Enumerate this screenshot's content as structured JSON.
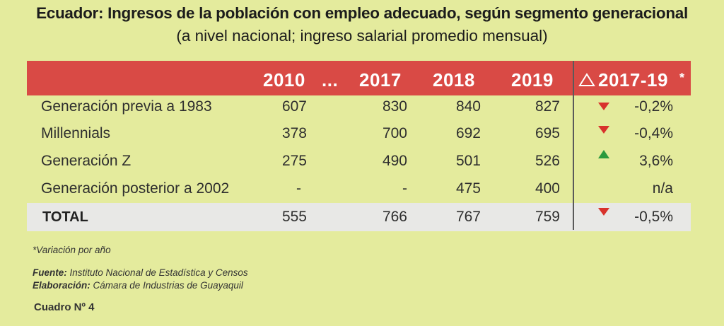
{
  "title": "Ecuador: Ingresos de la población con empleo adecuado, según segmento generacional",
  "subtitle": "(a nivel nacional; ingreso salarial promedio mensual)",
  "header": {
    "col_2010": "2010",
    "col_ellipsis": "...",
    "col_2017": "2017",
    "col_2018": "2018",
    "col_2019": "2019",
    "col_change": "2017-19",
    "change_marker": "*"
  },
  "rows": [
    {
      "label": "Generación previa a 1983",
      "v2010": "607",
      "v2017": "830",
      "v2018": "840",
      "v2019": "827",
      "change": "-0,2%",
      "trend": "down"
    },
    {
      "label": "Millennials",
      "v2010": "378",
      "v2017": "700",
      "v2018": "692",
      "v2019": "695",
      "change": "-0,4%",
      "trend": "down"
    },
    {
      "label": "Generación Z",
      "v2010": "275",
      "v2017": "490",
      "v2018": "501",
      "v2019": "526",
      "change": "3,6%",
      "trend": "up"
    },
    {
      "label": "Generación posterior a 2002",
      "v2010": "-",
      "v2017": "-",
      "v2018": "475",
      "v2019": "400",
      "change": "n/a",
      "trend": "none"
    }
  ],
  "total": {
    "label": "TOTAL",
    "v2010": "555",
    "v2017": "766",
    "v2018": "767",
    "v2019": "759",
    "change": "-0,5%",
    "trend": "down"
  },
  "footnote": "*Variación por año",
  "source_label": "Fuente:",
  "source_text": "Instituto Nacional de Estadística y Censos",
  "elab_label": "Elaboración:",
  "elab_text": "Cámara de Industrias de Guayaquil",
  "table_caption": "Cuadro Nº 4",
  "colors": {
    "background": "#e4eb9d",
    "header": "#d94a45",
    "down": "#d8322c",
    "up": "#2b9a3e",
    "total_row": "#e8e8e6"
  },
  "chart_data": {
    "type": "table",
    "title": "Ecuador: Ingresos de la población con empleo adecuado, según segmento generacional",
    "subtitle": "(a nivel nacional; ingreso salarial promedio mensual)",
    "columns": [
      "2010",
      "2017",
      "2018",
      "2019",
      "2017-19*"
    ],
    "rows": [
      {
        "name": "Generación previa a 1983",
        "values": [
          607,
          830,
          840,
          827
        ],
        "change": "-0,2%"
      },
      {
        "name": "Millennials",
        "values": [
          378,
          700,
          692,
          695
        ],
        "change": "-0,4%"
      },
      {
        "name": "Generación Z",
        "values": [
          275,
          490,
          501,
          526
        ],
        "change": "3,6%"
      },
      {
        "name": "Generación posterior a 2002",
        "values": [
          null,
          null,
          475,
          400
        ],
        "change": "n/a"
      },
      {
        "name": "TOTAL",
        "values": [
          555,
          766,
          767,
          759
        ],
        "change": "-0,5%"
      }
    ]
  }
}
